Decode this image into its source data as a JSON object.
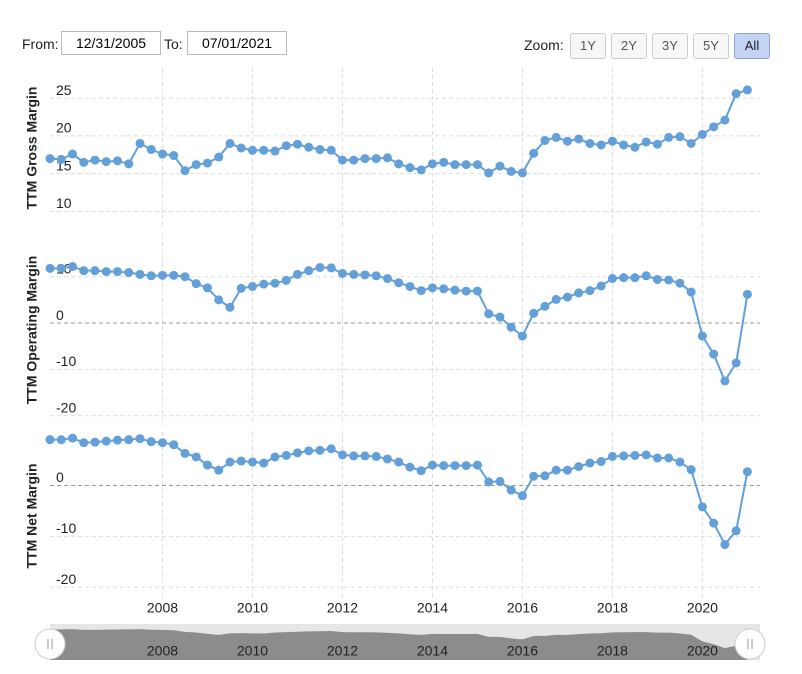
{
  "controls": {
    "from_label": "From:",
    "from": "12/31/2005",
    "to_label": "To:",
    "to": "07/01/2021",
    "zoom_label": "Zoom:",
    "zoom": [
      "1Y",
      "2Y",
      "3Y",
      "5Y",
      "All"
    ]
  },
  "chart_data": [
    {
      "type": "line",
      "ylabel": "TTM Gross Margin",
      "color": "#639fd8",
      "grid": true,
      "x": [
        2005.5,
        2005.75,
        2006,
        2006.25,
        2006.5,
        2006.75,
        2007,
        2007.25,
        2007.5,
        2007.75,
        2008,
        2008.25,
        2008.5,
        2008.75,
        2009,
        2009.25,
        2009.5,
        2009.75,
        2010,
        2010.25,
        2010.5,
        2010.75,
        2011,
        2011.25,
        2011.5,
        2011.75,
        2012,
        2012.25,
        2012.5,
        2012.75,
        2013,
        2013.25,
        2013.5,
        2013.75,
        2014,
        2014.25,
        2014.5,
        2014.75,
        2015,
        2015.25,
        2015.5,
        2015.75,
        2016,
        2016.25,
        2016.5,
        2016.75,
        2017,
        2017.25,
        2017.5,
        2017.75,
        2018,
        2018.25,
        2018.5,
        2018.75,
        2019,
        2019.25,
        2019.5,
        2019.75,
        2020,
        2020.25,
        2020.5,
        2020.75,
        2021
      ],
      "series": [
        {
          "values": [
            17.0,
            16.9,
            17.6,
            16.5,
            16.8,
            16.6,
            16.7,
            16.3,
            19.0,
            18.2,
            17.6,
            17.4,
            15.4,
            16.2,
            16.4,
            17.2,
            19.0,
            18.4,
            18.1,
            18.1,
            18.0,
            18.7,
            18.9,
            18.5,
            18.2,
            18.1,
            16.8,
            16.8,
            17.0,
            17.0,
            17.1,
            16.3,
            15.8,
            15.5,
            16.3,
            16.5,
            16.2,
            16.2,
            16.2,
            15.1,
            16.0,
            15.3,
            15.1,
            17.7,
            19.4,
            19.8,
            19.3,
            19.6,
            19.0,
            18.8,
            19.3,
            18.8,
            18.5,
            19.2,
            18.9,
            19.8,
            19.9,
            19.0,
            20.2,
            21.2,
            22.1,
            25.6,
            26.1
          ]
        }
      ],
      "xlim": [
        2005.5,
        2021.28
      ],
      "ylim": [
        7.8,
        29
      ],
      "yticks": [
        10,
        15,
        20,
        25
      ]
    },
    {
      "type": "line",
      "ylabel": "TTM Operating Margin",
      "color": "#639fd8",
      "grid": true,
      "x": [
        2005.5,
        2005.75,
        2006,
        2006.25,
        2006.5,
        2006.75,
        2007,
        2007.25,
        2007.5,
        2007.75,
        2008,
        2008.25,
        2008.5,
        2008.75,
        2009,
        2009.25,
        2009.5,
        2009.75,
        2010,
        2010.25,
        2010.5,
        2010.75,
        2011,
        2011.25,
        2011.5,
        2011.75,
        2012,
        2012.25,
        2012.5,
        2012.75,
        2013,
        2013.25,
        2013.5,
        2013.75,
        2014,
        2014.25,
        2014.5,
        2014.75,
        2015,
        2015.25,
        2015.5,
        2015.75,
        2016,
        2016.25,
        2016.5,
        2016.75,
        2017,
        2017.25,
        2017.5,
        2017.75,
        2018,
        2018.25,
        2018.5,
        2018.75,
        2019,
        2019.25,
        2019.5,
        2019.75,
        2020,
        2020.25,
        2020.5,
        2020.75,
        2021
      ],
      "series": [
        {
          "values": [
            11.8,
            11.8,
            12.2,
            11.3,
            11.3,
            11.1,
            11.1,
            10.9,
            10.5,
            10.2,
            10.3,
            10.3,
            10.0,
            8.5,
            7.6,
            5.0,
            3.4,
            7.5,
            7.9,
            8.4,
            8.6,
            9.2,
            10.5,
            11.3,
            12.0,
            11.9,
            10.7,
            10.5,
            10.4,
            10.2,
            9.6,
            8.7,
            7.9,
            7.0,
            7.6,
            7.4,
            7.1,
            6.9,
            6.9,
            2.0,
            1.3,
            -0.9,
            -2.8,
            2.1,
            3.6,
            5.1,
            5.6,
            6.5,
            7.0,
            8.0,
            9.6,
            9.8,
            9.8,
            10.2,
            9.4,
            9.3,
            8.6,
            6.7,
            -2.8,
            -6.7,
            -12.5,
            -8.6,
            6.2
          ]
        }
      ],
      "xlim": [
        2005.5,
        2021.28
      ],
      "ylim": [
        -22,
        19
      ],
      "yticks": [
        -20,
        -10,
        0,
        10
      ]
    },
    {
      "type": "line",
      "ylabel": "TTM Net Margin",
      "color": "#639fd8",
      "grid": true,
      "x": [
        2005.5,
        2005.75,
        2006,
        2006.25,
        2006.5,
        2006.75,
        2007,
        2007.25,
        2007.5,
        2007.75,
        2008,
        2008.25,
        2008.5,
        2008.75,
        2009,
        2009.25,
        2009.5,
        2009.75,
        2010,
        2010.25,
        2010.5,
        2010.75,
        2011,
        2011.25,
        2011.5,
        2011.75,
        2012,
        2012.25,
        2012.5,
        2012.75,
        2013,
        2013.25,
        2013.5,
        2013.75,
        2014,
        2014.25,
        2014.5,
        2014.75,
        2015,
        2015.25,
        2015.5,
        2015.75,
        2016,
        2016.25,
        2016.5,
        2016.75,
        2017,
        2017.25,
        2017.5,
        2017.75,
        2018,
        2018.25,
        2018.5,
        2018.75,
        2019,
        2019.25,
        2019.5,
        2019.75,
        2020,
        2020.25,
        2020.5,
        2020.75,
        2021
      ],
      "series": [
        {
          "values": [
            9.0,
            9.0,
            9.3,
            8.4,
            8.5,
            8.7,
            8.9,
            9.0,
            9.2,
            8.6,
            8.4,
            8.0,
            6.3,
            5.6,
            4.0,
            3.0,
            4.6,
            4.8,
            4.6,
            4.4,
            5.6,
            5.9,
            6.4,
            6.8,
            6.9,
            7.2,
            6.0,
            5.8,
            5.8,
            5.7,
            5.2,
            4.6,
            3.6,
            2.9,
            4.0,
            3.9,
            3.9,
            3.9,
            4.0,
            0.7,
            0.8,
            -0.9,
            -2.0,
            1.8,
            1.9,
            3.0,
            3.0,
            3.7,
            4.4,
            4.7,
            5.7,
            5.8,
            5.9,
            6.0,
            5.4,
            5.4,
            4.6,
            3.1,
            -4.2,
            -7.4,
            -11.6,
            -8.9,
            2.7
          ]
        }
      ],
      "xlim": [
        2005.5,
        2021.28
      ],
      "ylim": [
        -22.5,
        10.5
      ],
      "yticks": [
        -20,
        -10,
        0
      ],
      "xticks": [
        2008,
        2010,
        2012,
        2014,
        2016,
        2018,
        2020
      ]
    }
  ]
}
